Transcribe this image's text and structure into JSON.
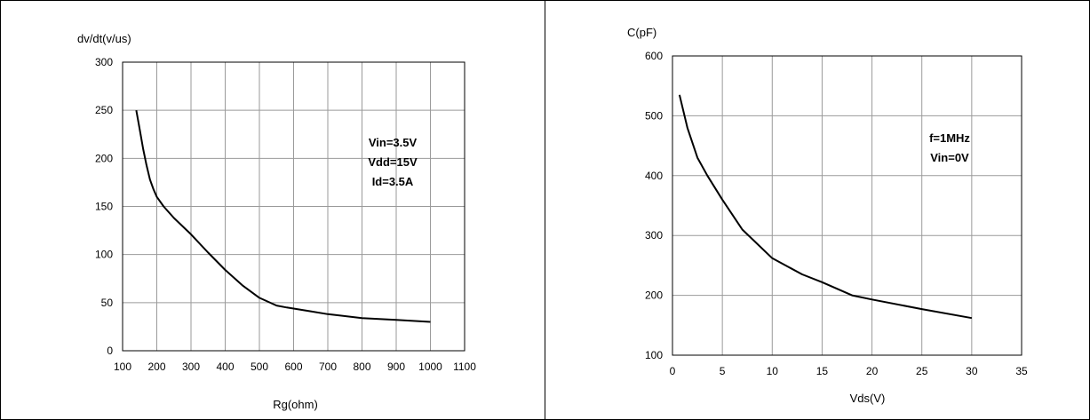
{
  "chart_data": [
    {
      "type": "line",
      "ylabel": "dv/dt(v/us)",
      "xlabel": "Rg(ohm)",
      "xlim": [
        100,
        1100
      ],
      "ylim": [
        0,
        300
      ],
      "xticks": [
        100,
        200,
        300,
        400,
        500,
        600,
        700,
        800,
        900,
        1000,
        1100
      ],
      "yticks": [
        0,
        50,
        100,
        150,
        200,
        250,
        300
      ],
      "grid": true,
      "annotation": [
        "Vin=3.5V",
        "Vdd=15V",
        "Id=3.5A"
      ],
      "series": [
        {
          "x": [
            140,
            150,
            160,
            170,
            180,
            190,
            200,
            220,
            250,
            300,
            350,
            400,
            450,
            500,
            550,
            580,
            650,
            700,
            800,
            900,
            1000
          ],
          "y": [
            250,
            230,
            210,
            193,
            178,
            168,
            160,
            150,
            138,
            121,
            102,
            84,
            68,
            55,
            47,
            45,
            41,
            38,
            34,
            32,
            30
          ]
        }
      ]
    },
    {
      "type": "line",
      "ylabel": "C(pF)",
      "xlabel": "Vds(V)",
      "xlim": [
        0,
        35
      ],
      "ylim": [
        100,
        600
      ],
      "xticks": [
        0,
        5,
        10,
        15,
        20,
        25,
        30,
        35
      ],
      "yticks": [
        100,
        200,
        300,
        400,
        500,
        600
      ],
      "grid": true,
      "annotation": [
        "f=1MHz",
        "Vin=0V"
      ],
      "series": [
        {
          "x": [
            0.7,
            1.5,
            2.5,
            3.5,
            5,
            7,
            10,
            13,
            15,
            18,
            20,
            25,
            30
          ],
          "y": [
            535,
            480,
            430,
            400,
            360,
            310,
            262,
            235,
            222,
            200,
            193,
            177,
            162
          ]
        }
      ]
    }
  ]
}
